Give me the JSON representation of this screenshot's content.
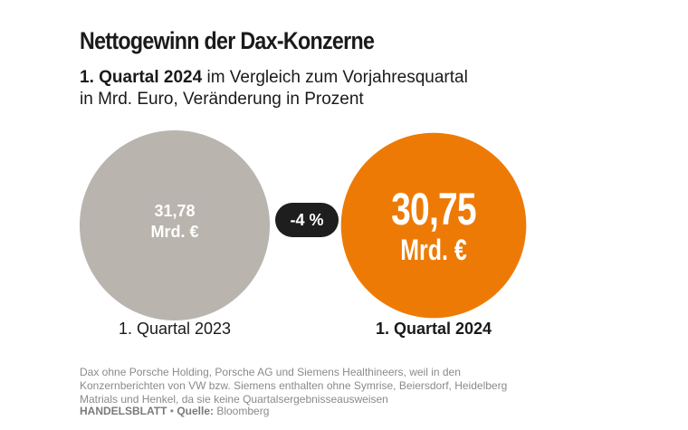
{
  "title": "Nettogewinn der Dax-Konzerne",
  "subtitle": {
    "bold": "1. Quartal 2024",
    "rest_line1": " im Vergleich zum Vorjahresquartal",
    "line2": "in Mrd. Euro, Veränderung in Prozent"
  },
  "chart_data": {
    "type": "bubble",
    "unit": "Mrd. €",
    "categories": [
      "1. Quartal 2023",
      "1. Quartal 2024"
    ],
    "values": [
      31.78,
      30.75
    ],
    "value_labels": [
      "31,78",
      "30,75"
    ],
    "change_label": "-4 %",
    "colors": [
      "#b9b4ae",
      "#ee7a06"
    ],
    "change_badge_color": "#1e1e1e"
  },
  "footer": {
    "note": "Dax ohne Porsche Holding, Porsche AG und Siemens Healthineers, weil in den Konzernberichten von VW bzw. Siemens enthalten ohne Symrise, Beiersdorf, Heidelberg Matrials und Henkel, da sie keine Quartalsergebnisseausweisen",
    "brand": "HANDELSBLATT",
    "separator": " • ",
    "source_label": "Quelle:",
    "source_value": " Bloomberg"
  }
}
